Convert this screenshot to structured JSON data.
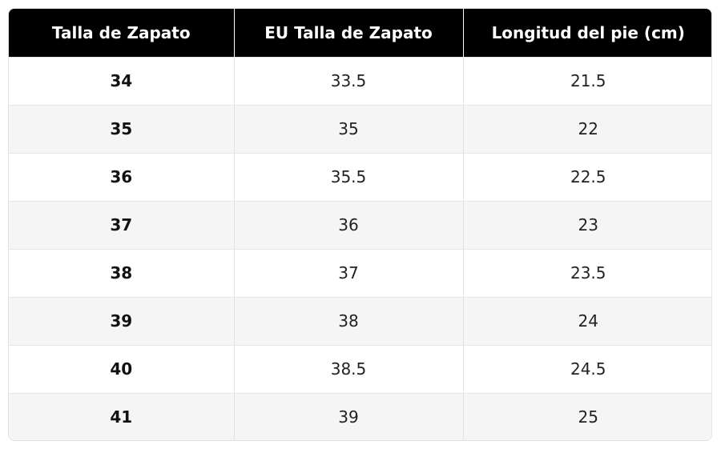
{
  "table": {
    "headers": [
      "Talla de Zapato",
      "EU Talla de Zapato",
      "Longitud del pie (cm)"
    ],
    "rows": [
      [
        "34",
        "33.5",
        "21.5"
      ],
      [
        "35",
        "35",
        "22"
      ],
      [
        "36",
        "35.5",
        "22.5"
      ],
      [
        "37",
        "36",
        "23"
      ],
      [
        "38",
        "37",
        "23.5"
      ],
      [
        "39",
        "38",
        "24"
      ],
      [
        "40",
        "38.5",
        "24.5"
      ],
      [
        "41",
        "39",
        "25"
      ]
    ]
  },
  "colors": {
    "header_bg": "#000000",
    "header_text": "#ffffff",
    "row_alt": "#f5f5f5"
  }
}
